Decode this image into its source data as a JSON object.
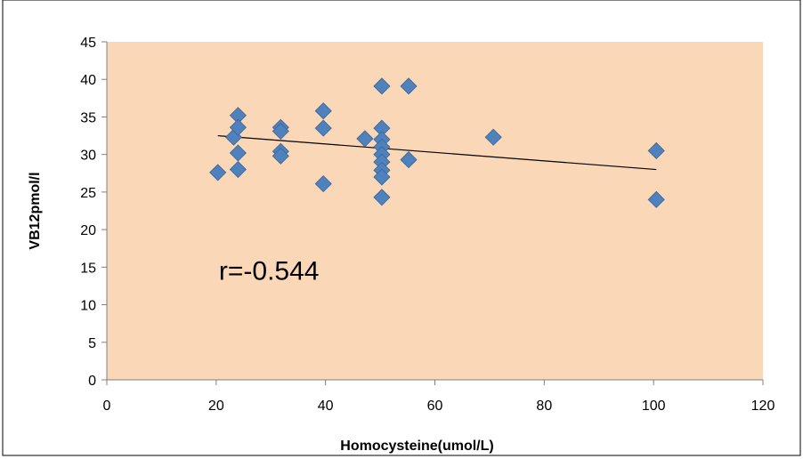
{
  "chart_data": {
    "type": "scatter",
    "xlabel": "Homocysteine(umol/L)",
    "ylabel": "VB12pmol/l",
    "xlim": [
      0,
      120
    ],
    "ylim": [
      0,
      45
    ],
    "xticks": [
      0,
      20,
      40,
      60,
      80,
      100,
      120
    ],
    "yticks": [
      0,
      5,
      10,
      15,
      20,
      25,
      30,
      35,
      40,
      45
    ],
    "grid": false,
    "legend": "none",
    "plot_background": "#FAD7B7",
    "marker_color": "#4F81BD",
    "marker_shape": "diamond",
    "points": [
      {
        "x": 20.3,
        "y": 27.6
      },
      {
        "x": 23.2,
        "y": 32.3
      },
      {
        "x": 24.0,
        "y": 35.2
      },
      {
        "x": 24.0,
        "y": 33.6
      },
      {
        "x": 24.0,
        "y": 30.2
      },
      {
        "x": 24.0,
        "y": 28.0
      },
      {
        "x": 31.8,
        "y": 33.6
      },
      {
        "x": 31.8,
        "y": 33.1
      },
      {
        "x": 31.8,
        "y": 30.4
      },
      {
        "x": 31.8,
        "y": 29.8
      },
      {
        "x": 39.6,
        "y": 35.8
      },
      {
        "x": 39.6,
        "y": 33.5
      },
      {
        "x": 39.6,
        "y": 26.1
      },
      {
        "x": 47.2,
        "y": 32.1
      },
      {
        "x": 50.3,
        "y": 39.1
      },
      {
        "x": 50.3,
        "y": 33.5
      },
      {
        "x": 50.3,
        "y": 32.0
      },
      {
        "x": 50.3,
        "y": 31.0
      },
      {
        "x": 50.3,
        "y": 30.0
      },
      {
        "x": 50.3,
        "y": 29.0
      },
      {
        "x": 50.3,
        "y": 27.9
      },
      {
        "x": 50.3,
        "y": 27.0
      },
      {
        "x": 50.3,
        "y": 24.3
      },
      {
        "x": 55.2,
        "y": 39.1
      },
      {
        "x": 55.2,
        "y": 29.3
      },
      {
        "x": 70.7,
        "y": 32.3
      },
      {
        "x": 100.5,
        "y": 30.5
      },
      {
        "x": 100.5,
        "y": 24.0
      }
    ],
    "trendline": {
      "type": "linear",
      "start": {
        "x": 20.3,
        "y": 32.5
      },
      "end": {
        "x": 100.5,
        "y": 28.0
      }
    },
    "annotation": "r=-0.544"
  }
}
